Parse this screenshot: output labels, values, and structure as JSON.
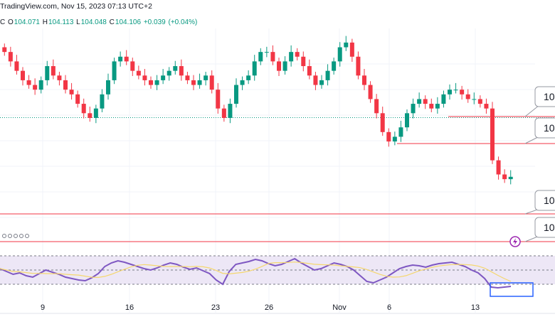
{
  "header": {
    "source": "TradingView.com",
    "timestamp": "Nov 15, 2023 07:13 UTC+2"
  },
  "ohlc": {
    "c_cut": "C",
    "open_label": "O",
    "open": "104.071",
    "high_label": "H",
    "high": "104.113",
    "low_label": "L",
    "low": "104.048",
    "close_label": "C",
    "close": "104.106",
    "change": "+0.039",
    "change_pct": "(+0.04%)"
  },
  "colors": {
    "up": "#089981",
    "down": "#f23645",
    "rsi_line": "#7e57c2",
    "rsi_ma": "#f5d76e",
    "rsi_band": "#ede7f6",
    "level_line": "#f23645",
    "grid": "#f0f3fa",
    "alert": "#9c27b0",
    "highlight_box": "#2962ff"
  },
  "icons": [
    "alert-lightning-icon",
    "settings-dots-icon"
  ],
  "chart_data": {
    "type": "candlestick",
    "x_ticks": [
      "9",
      "16",
      "23",
      "26",
      "Nov",
      "6",
      "13"
    ],
    "price_labels": [
      "10",
      "10",
      "10",
      "10"
    ],
    "levels_drawn": 4,
    "current_price": 104.106,
    "candles_close_path": [
      105.5,
      105.3,
      105.1,
      104.9,
      104.8,
      104.7,
      104.9,
      105.2,
      105.0,
      104.9,
      104.7,
      104.6,
      104.4,
      104.2,
      104.1,
      104.3,
      104.6,
      104.9,
      105.3,
      105.4,
      105.3,
      105.1,
      105.0,
      104.9,
      104.8,
      104.9,
      105.0,
      105.1,
      105.2,
      105.0,
      104.9,
      104.8,
      104.9,
      105.0,
      104.7,
      104.3,
      104.1,
      104.4,
      104.8,
      104.9,
      105.0,
      105.3,
      105.5,
      105.5,
      105.3,
      105.1,
      105.3,
      105.5,
      105.4,
      105.2,
      105.0,
      104.8,
      104.9,
      105.1,
      105.3,
      105.6,
      105.7,
      105.4,
      105.0,
      104.8,
      104.5,
      104.2,
      103.8,
      103.6,
      103.7,
      103.9,
      104.2,
      104.4,
      104.5,
      104.4,
      104.3,
      104.4,
      104.6,
      104.7,
      104.7,
      104.6,
      104.5,
      104.5,
      104.4,
      104.3,
      103.2,
      102.9,
      102.8,
      102.85
    ],
    "rsi_series": [
      52,
      48,
      44,
      46,
      42,
      40,
      45,
      50,
      47,
      44,
      40,
      38,
      36,
      35,
      39,
      45,
      55,
      60,
      63,
      61,
      58,
      55,
      52,
      50,
      53,
      57,
      60,
      58,
      54,
      51,
      53,
      49,
      45,
      36,
      30,
      48,
      58,
      60,
      62,
      65,
      63,
      59,
      56,
      58,
      62,
      66,
      60,
      55,
      50,
      52,
      56,
      60,
      58,
      55,
      50,
      42,
      34,
      32,
      36,
      40,
      46,
      52,
      55,
      57,
      56,
      54,
      57,
      59,
      60,
      61,
      58,
      55,
      50,
      46,
      38,
      26,
      25,
      26,
      27
    ],
    "rsi_levels": [
      70,
      50,
      30
    ]
  }
}
